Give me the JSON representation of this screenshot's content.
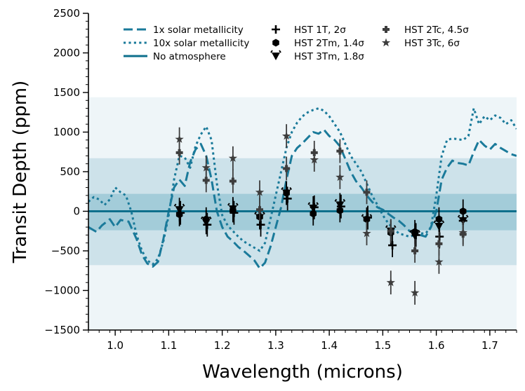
{
  "chart_data": {
    "type": "line",
    "xlabel": "Wavelength (microns)",
    "ylabel": "Transit Depth (ppm)",
    "xlim": [
      0.95,
      1.75
    ],
    "ylim": [
      -1500,
      2500
    ],
    "x_ticks": [
      1.0,
      1.1,
      1.2,
      1.3,
      1.4,
      1.5,
      1.6,
      1.7
    ],
    "x_tick_labels": [
      "1.0",
      "1.1",
      "1.2",
      "1.3",
      "1.4",
      "1.5",
      "1.6",
      "1.7"
    ],
    "y_ticks": [
      -1500,
      -1000,
      -500,
      0,
      500,
      1000,
      1500,
      2000,
      2500
    ],
    "y_tick_labels": [
      "−1500",
      "−1000",
      "−500",
      "0",
      "500",
      "1000",
      "1500",
      "2000",
      "2500"
    ],
    "legend_location": "top",
    "colors": {
      "model": "#1a7a9a",
      "flat": "#0d6f8c",
      "band_outer": "#eef5f8",
      "band_mid": "#cde2ea",
      "band_inner": "#a3ccd9",
      "points_dark": "#000000",
      "points_gray": "#3d3d3d"
    },
    "bands": [
      {
        "name": "3-sigma band",
        "low": -1500,
        "high": 1440
      },
      {
        "name": "2-sigma band",
        "low": -680,
        "high": 670
      },
      {
        "name": "1-sigma band",
        "low": -240,
        "high": 220
      }
    ],
    "series": [
      {
        "name": "1x solar metallicity",
        "style": "dashed",
        "x": [
          0.95,
          0.965,
          0.975,
          0.99,
          1.0,
          1.01,
          1.025,
          1.04,
          1.05,
          1.06,
          1.07,
          1.08,
          1.09,
          1.1,
          1.11,
          1.12,
          1.13,
          1.14,
          1.15,
          1.16,
          1.17,
          1.18,
          1.19,
          1.2,
          1.21,
          1.22,
          1.23,
          1.24,
          1.25,
          1.26,
          1.27,
          1.28,
          1.29,
          1.3,
          1.31,
          1.32,
          1.33,
          1.34,
          1.35,
          1.36,
          1.37,
          1.38,
          1.39,
          1.4,
          1.41,
          1.42,
          1.43,
          1.44,
          1.45,
          1.46,
          1.47,
          1.48,
          1.49,
          1.5,
          1.51,
          1.52,
          1.53,
          1.54,
          1.55,
          1.56,
          1.57,
          1.58,
          1.59,
          1.6,
          1.61,
          1.62,
          1.63,
          1.64,
          1.65,
          1.66,
          1.67,
          1.68,
          1.69,
          1.7,
          1.71,
          1.72,
          1.73,
          1.74,
          1.75
        ],
        "y": [
          -200,
          -260,
          -180,
          -100,
          -200,
          -110,
          -130,
          -350,
          -550,
          -660,
          -700,
          -640,
          -350,
          0,
          300,
          400,
          320,
          620,
          780,
          850,
          700,
          400,
          0,
          -200,
          -320,
          -380,
          -450,
          -500,
          -560,
          -620,
          -720,
          -650,
          -450,
          -200,
          50,
          400,
          700,
          800,
          860,
          930,
          1000,
          980,
          1030,
          950,
          900,
          820,
          660,
          500,
          380,
          300,
          200,
          120,
          50,
          20,
          -30,
          -80,
          -120,
          -180,
          -250,
          -280,
          -300,
          -320,
          -200,
          0,
          400,
          550,
          640,
          610,
          600,
          580,
          750,
          900,
          830,
          780,
          850,
          800,
          760,
          720,
          700
        ]
      },
      {
        "name": "10x solar metallicity",
        "style": "dotted",
        "x": [
          0.95,
          0.96,
          0.97,
          0.98,
          0.99,
          1.0,
          1.01,
          1.02,
          1.03,
          1.04,
          1.05,
          1.06,
          1.07,
          1.08,
          1.09,
          1.1,
          1.11,
          1.12,
          1.13,
          1.14,
          1.15,
          1.16,
          1.17,
          1.18,
          1.19,
          1.2,
          1.21,
          1.22,
          1.23,
          1.24,
          1.25,
          1.26,
          1.27,
          1.28,
          1.29,
          1.3,
          1.31,
          1.32,
          1.33,
          1.34,
          1.35,
          1.36,
          1.37,
          1.38,
          1.39,
          1.4,
          1.41,
          1.42,
          1.43,
          1.44,
          1.45,
          1.46,
          1.47,
          1.48,
          1.49,
          1.5,
          1.51,
          1.52,
          1.53,
          1.54,
          1.55,
          1.56,
          1.57,
          1.58,
          1.59,
          1.6,
          1.61,
          1.62,
          1.63,
          1.64,
          1.65,
          1.66,
          1.67,
          1.68,
          1.69,
          1.7,
          1.71,
          1.72,
          1.73,
          1.74,
          1.75
        ],
        "y": [
          120,
          180,
          150,
          80,
          150,
          300,
          240,
          200,
          0,
          -300,
          -500,
          -620,
          -670,
          -600,
          -380,
          -50,
          400,
          700,
          680,
          550,
          820,
          970,
          1070,
          900,
          350,
          -50,
          -180,
          -250,
          -320,
          -380,
          -420,
          -460,
          -500,
          -400,
          -100,
          200,
          500,
          800,
          1000,
          1120,
          1200,
          1250,
          1280,
          1300,
          1270,
          1200,
          1100,
          1000,
          850,
          700,
          600,
          500,
          350,
          200,
          80,
          -50,
          -150,
          -220,
          -280,
          -300,
          -320,
          -300,
          -280,
          -280,
          -200,
          200,
          700,
          900,
          920,
          910,
          900,
          950,
          1300,
          1100,
          1200,
          1150,
          1210,
          1180,
          1100,
          1150,
          1040
        ]
      },
      {
        "name": "No atmosphere",
        "style": "solid",
        "x": [
          0.95,
          1.75
        ],
        "y": [
          0,
          0
        ]
      }
    ],
    "points": [
      {
        "name": "HST 1T, 2σ",
        "marker": "plus",
        "color": "#000000",
        "data": [
          [
            1.122,
            -20,
            150
          ],
          [
            1.172,
            -170,
            150
          ],
          [
            1.222,
            -20,
            150
          ],
          [
            1.272,
            -170,
            150
          ],
          [
            1.322,
            160,
            150
          ],
          [
            1.372,
            50,
            150
          ],
          [
            1.422,
            60,
            150
          ],
          [
            1.472,
            -80,
            150
          ],
          [
            1.518,
            -430,
            150
          ],
          [
            1.562,
            -300,
            150
          ],
          [
            1.606,
            -320,
            150
          ],
          [
            1.65,
            -120,
            150
          ]
        ]
      },
      {
        "name": "HST 2Tm, 1.4σ",
        "marker": "hexagon",
        "color": "#000000",
        "data": [
          [
            1.12,
            -40,
            150
          ],
          [
            1.17,
            -100,
            150
          ],
          [
            1.22,
            10,
            150
          ],
          [
            1.27,
            -70,
            150
          ],
          [
            1.32,
            230,
            150
          ],
          [
            1.37,
            -30,
            150
          ],
          [
            1.42,
            10,
            150
          ],
          [
            1.47,
            -100,
            150
          ],
          [
            1.515,
            -270,
            150
          ],
          [
            1.56,
            -260,
            150
          ],
          [
            1.605,
            -100,
            150
          ],
          [
            1.65,
            0,
            150
          ]
        ]
      },
      {
        "name": "HST 3Tm, 1.8σ",
        "marker": "tri_down",
        "color": "#000000",
        "data": [
          [
            1.12,
            20,
            150
          ],
          [
            1.17,
            -140,
            150
          ],
          [
            1.22,
            30,
            150
          ],
          [
            1.27,
            -80,
            150
          ],
          [
            1.32,
            230,
            150
          ],
          [
            1.37,
            40,
            150
          ],
          [
            1.42,
            80,
            150
          ],
          [
            1.47,
            -110,
            150
          ],
          [
            1.515,
            -250,
            150
          ],
          [
            1.56,
            -310,
            150
          ],
          [
            1.605,
            -190,
            150
          ],
          [
            1.65,
            -120,
            150
          ]
        ]
      },
      {
        "name": "HST 2Tc, 4.5σ",
        "marker": "plus_filled",
        "color": "#3d3d3d",
        "data": [
          [
            1.12,
            740,
            150
          ],
          [
            1.17,
            390,
            150
          ],
          [
            1.22,
            380,
            150
          ],
          [
            1.27,
            20,
            150
          ],
          [
            1.32,
            540,
            150
          ],
          [
            1.372,
            740,
            150
          ],
          [
            1.42,
            760,
            150
          ],
          [
            1.47,
            240,
            150
          ],
          [
            1.515,
            -250,
            150
          ],
          [
            1.56,
            -500,
            150
          ],
          [
            1.605,
            -410,
            150
          ],
          [
            1.65,
            -290,
            150
          ]
        ]
      },
      {
        "name": "HST 3Tc, 6σ",
        "marker": "star",
        "color": "#3d3d3d",
        "data": [
          [
            1.12,
            910,
            150
          ],
          [
            1.17,
            550,
            150
          ],
          [
            1.22,
            670,
            150
          ],
          [
            1.27,
            240,
            150
          ],
          [
            1.32,
            950,
            150
          ],
          [
            1.372,
            650,
            150
          ],
          [
            1.42,
            430,
            150
          ],
          [
            1.47,
            -280,
            150
          ],
          [
            1.515,
            -900,
            150
          ],
          [
            1.56,
            -1030,
            150
          ],
          [
            1.605,
            -640,
            150
          ],
          [
            1.65,
            -270,
            150
          ]
        ]
      }
    ]
  }
}
